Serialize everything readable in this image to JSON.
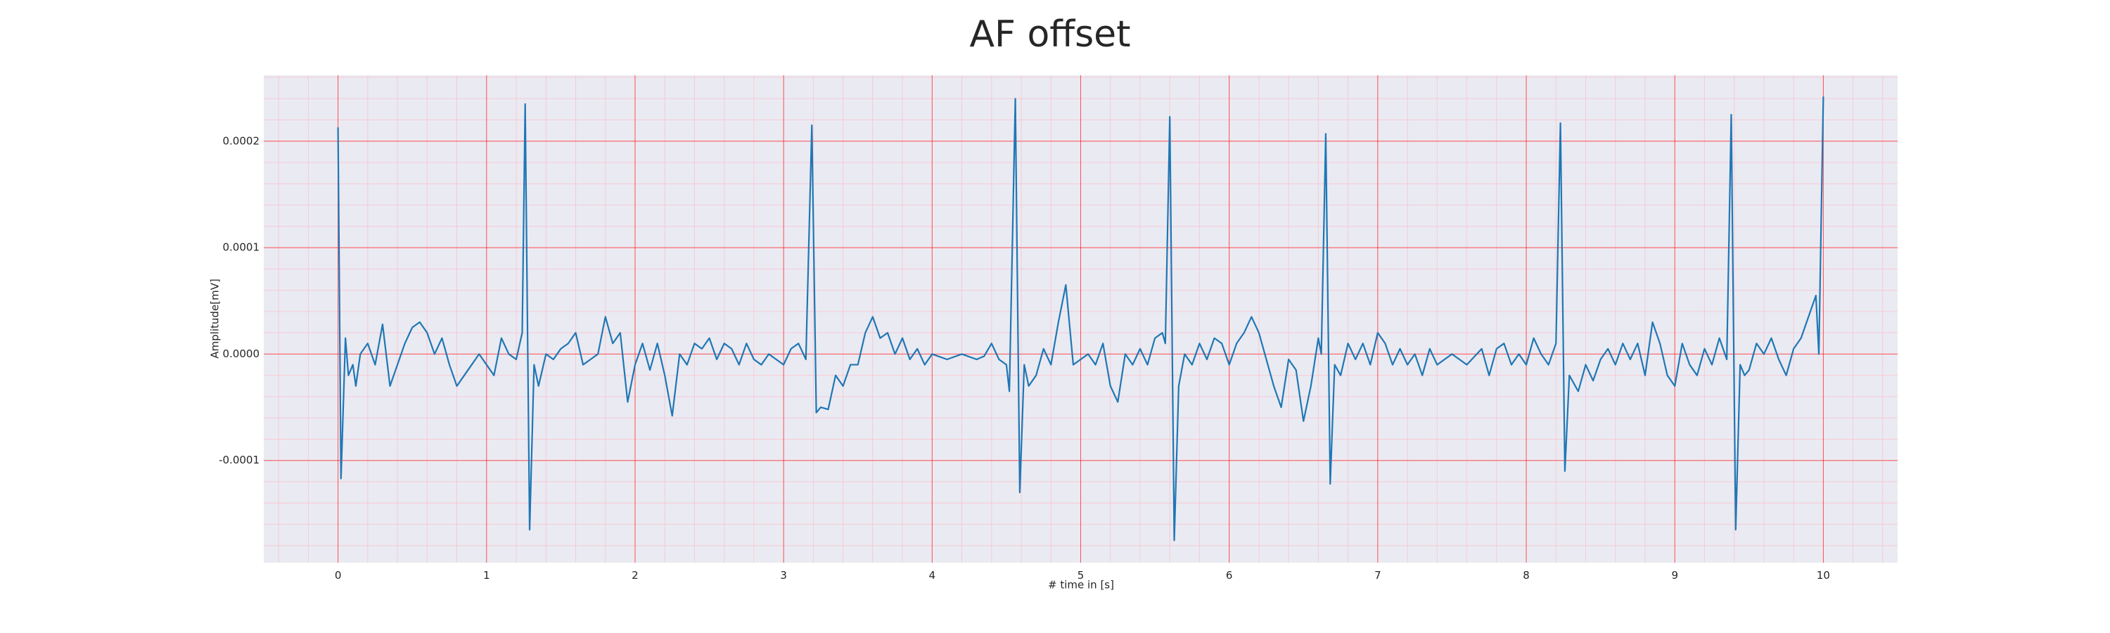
{
  "chart_data": {
    "type": "line",
    "title": "AF offset",
    "x_label": "# time in [s]",
    "y_label": "Amplitude[mV]",
    "xlim": [
      -0.5,
      10.5
    ],
    "ylim": [
      -0.000196,
      0.000262
    ],
    "xticks": [
      0,
      1,
      2,
      3,
      4,
      5,
      6,
      7,
      8,
      9,
      10
    ],
    "yticks": [
      -0.0001,
      {
        "value": 0,
        "label": "0.0000"
      },
      0.0001,
      0.0002
    ],
    "grid": true,
    "minor_xstep": 0.2,
    "minor_ystep": 2e-05,
    "background": "#eaeaf2",
    "grid_color": "#ff0000",
    "minor_grid_color": "#ffb6c1",
    "series": [
      {
        "color": "#1f77b4",
        "x": [
          0.0,
          0.02,
          0.05,
          0.07,
          0.1,
          0.12,
          0.15,
          0.2,
          0.25,
          0.3,
          0.35,
          0.4,
          0.45,
          0.5,
          0.55,
          0.6,
          0.65,
          0.7,
          0.75,
          0.8,
          0.85,
          0.9,
          0.95,
          1.0,
          1.05,
          1.1,
          1.15,
          1.2,
          1.24,
          1.26,
          1.29,
          1.32,
          1.35,
          1.4,
          1.45,
          1.5,
          1.55,
          1.6,
          1.65,
          1.7,
          1.75,
          1.8,
          1.85,
          1.9,
          1.95,
          2.0,
          2.05,
          2.1,
          2.15,
          2.2,
          2.25,
          2.3,
          2.35,
          2.4,
          2.45,
          2.5,
          2.55,
          2.6,
          2.65,
          2.7,
          2.75,
          2.8,
          2.85,
          2.9,
          2.95,
          3.0,
          3.05,
          3.1,
          3.15,
          3.19,
          3.22,
          3.25,
          3.3,
          3.35,
          3.4,
          3.45,
          3.5,
          3.55,
          3.6,
          3.65,
          3.7,
          3.75,
          3.8,
          3.85,
          3.9,
          3.95,
          4.0,
          4.1,
          4.2,
          4.3,
          4.35,
          4.4,
          4.45,
          4.5,
          4.52,
          4.56,
          4.59,
          4.62,
          4.65,
          4.7,
          4.75,
          4.8,
          4.85,
          4.9,
          4.95,
          5.0,
          5.05,
          5.1,
          5.15,
          5.2,
          5.25,
          5.3,
          5.35,
          5.4,
          5.45,
          5.5,
          5.55,
          5.57,
          5.6,
          5.63,
          5.66,
          5.7,
          5.75,
          5.8,
          5.85,
          5.9,
          5.95,
          6.0,
          6.05,
          6.1,
          6.15,
          6.2,
          6.25,
          6.3,
          6.35,
          6.4,
          6.45,
          6.5,
          6.55,
          6.6,
          6.62,
          6.65,
          6.68,
          6.71,
          6.75,
          6.8,
          6.85,
          6.9,
          6.95,
          7.0,
          7.05,
          7.1,
          7.15,
          7.2,
          7.25,
          7.3,
          7.35,
          7.4,
          7.5,
          7.6,
          7.7,
          7.75,
          7.8,
          7.85,
          7.9,
          7.95,
          8.0,
          8.05,
          8.1,
          8.15,
          8.2,
          8.23,
          8.26,
          8.29,
          8.35,
          8.4,
          8.45,
          8.5,
          8.55,
          8.6,
          8.65,
          8.7,
          8.75,
          8.8,
          8.85,
          8.9,
          8.95,
          9.0,
          9.05,
          9.1,
          9.15,
          9.2,
          9.25,
          9.3,
          9.35,
          9.38,
          9.41,
          9.44,
          9.47,
          9.5,
          9.55,
          9.6,
          9.65,
          9.7,
          9.75,
          9.8,
          9.85,
          9.9,
          9.95,
          9.97,
          10.0
        ],
        "values": [
          0.000213,
          -0.000117,
          1.5e-05,
          -2e-05,
          -1e-05,
          -3e-05,
          0,
          1e-05,
          -1e-05,
          2.8e-05,
          -3e-05,
          -1e-05,
          1e-05,
          2.5e-05,
          3e-05,
          2e-05,
          0,
          1.5e-05,
          -1e-05,
          -3e-05,
          -2e-05,
          -1e-05,
          0,
          -1e-05,
          -2e-05,
          1.5e-05,
          0,
          -5e-06,
          2e-05,
          0.000235,
          -0.000165,
          -1e-05,
          -3e-05,
          0,
          -5e-06,
          5e-06,
          1e-05,
          2e-05,
          -1e-05,
          -5e-06,
          0,
          3.5e-05,
          1e-05,
          2e-05,
          -4.5e-05,
          -1e-05,
          1e-05,
          -1.5e-05,
          1e-05,
          -2e-05,
          -5.8e-05,
          0,
          -1e-05,
          1e-05,
          5e-06,
          1.5e-05,
          -5e-06,
          1e-05,
          5e-06,
          -1e-05,
          1e-05,
          -5e-06,
          -1e-05,
          0,
          -5e-06,
          -1e-05,
          5e-06,
          1e-05,
          -5e-06,
          0.000215,
          -5.5e-05,
          -5e-05,
          -5.2e-05,
          -2e-05,
          -3e-05,
          -1e-05,
          -1e-05,
          2e-05,
          3.5e-05,
          1.5e-05,
          2e-05,
          0,
          1.5e-05,
          -5e-06,
          5e-06,
          -1e-05,
          0,
          -5e-06,
          0,
          -5e-06,
          -2e-06,
          1e-05,
          -5e-06,
          -1e-05,
          -3.5e-05,
          0.00024,
          -0.00013,
          -1e-05,
          -3e-05,
          -2e-05,
          5e-06,
          -1e-05,
          3e-05,
          6.5e-05,
          -1e-05,
          -5e-06,
          0,
          -1e-05,
          1e-05,
          -3e-05,
          -4.5e-05,
          0,
          -1e-05,
          5e-06,
          -1e-05,
          1.5e-05,
          2e-05,
          1e-05,
          0.000223,
          -0.000175,
          -3e-05,
          0,
          -1e-05,
          1e-05,
          -5e-06,
          1.5e-05,
          1e-05,
          -1e-05,
          1e-05,
          2e-05,
          3.5e-05,
          2e-05,
          -5e-06,
          -3e-05,
          -5e-05,
          -5e-06,
          -1.5e-05,
          -6.3e-05,
          -3e-05,
          1.5e-05,
          0,
          0.000207,
          -0.000122,
          -1e-05,
          -2e-05,
          1e-05,
          -5e-06,
          1e-05,
          -1e-05,
          2e-05,
          1e-05,
          -1e-05,
          5e-06,
          -1e-05,
          0,
          -2e-05,
          5e-06,
          -1e-05,
          0,
          -1e-05,
          5e-06,
          -2e-05,
          5e-06,
          1e-05,
          -1e-05,
          0,
          -1e-05,
          1.5e-05,
          0,
          -1e-05,
          1e-05,
          0.000217,
          -0.00011,
          -2e-05,
          -3.5e-05,
          -1e-05,
          -2.5e-05,
          -5e-06,
          5e-06,
          -1e-05,
          1e-05,
          -5e-06,
          1e-05,
          -2e-05,
          3e-05,
          1e-05,
          -2e-05,
          -3e-05,
          1e-05,
          -1e-05,
          -2e-05,
          5e-06,
          -1e-05,
          1.5e-05,
          -5e-06,
          0.000225,
          -0.000165,
          -1e-05,
          -2e-05,
          -1.5e-05,
          1e-05,
          0,
          1.5e-05,
          -5e-06,
          -2e-05,
          5e-06,
          1.5e-05,
          3.5e-05,
          5.5e-05,
          0,
          0.000242
        ]
      }
    ]
  }
}
